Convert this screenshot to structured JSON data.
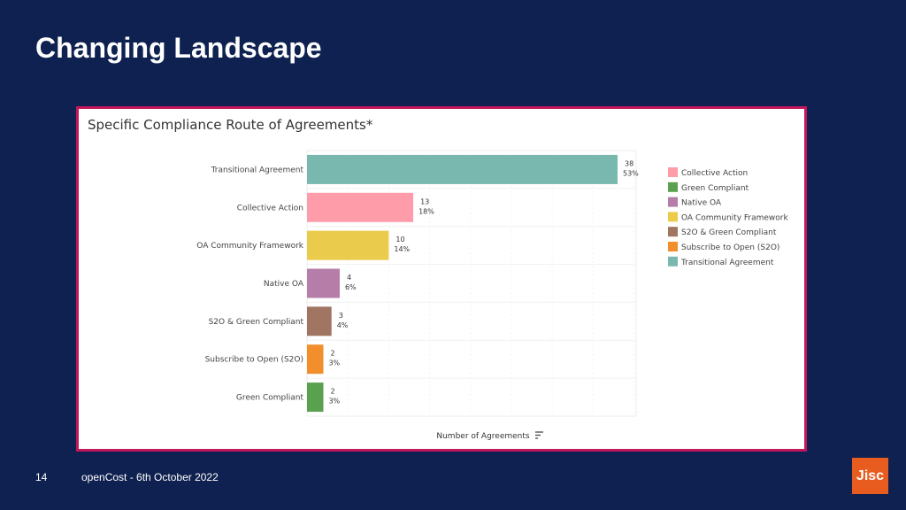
{
  "slide": {
    "title": "Changing Landscape",
    "page_number": "14",
    "footer": "openCost -  6th October 2022",
    "logo_text": "Jisc"
  },
  "chart_data": {
    "type": "bar",
    "orientation": "horizontal",
    "title": "Specific Compliance Route of Agreements*",
    "xlabel": "Number of Agreements",
    "ylabel": "",
    "grid": true,
    "legend_placement": "right",
    "categories": [
      "Transitional Agreement",
      "Collective Action",
      "OA Community Framework",
      "Native OA",
      "S2O & Green Compliant",
      "Subscribe to Open (S2O)",
      "Green Compliant"
    ],
    "values": [
      38,
      13,
      10,
      4,
      3,
      2,
      2
    ],
    "percent_labels": [
      "53%",
      "18%",
      "14%",
      "6%",
      "4%",
      "3%",
      "3%"
    ],
    "colors": [
      "#79b8ae",
      "#fe9da9",
      "#ebcb4c",
      "#b57da8",
      "#a07561",
      "#f28e2c",
      "#59a14f"
    ],
    "xlim": [
      0,
      41
    ],
    "legend": [
      {
        "label": "Collective Action",
        "color": "#fe9da9"
      },
      {
        "label": "Green Compliant",
        "color": "#59a14f"
      },
      {
        "label": "Native OA",
        "color": "#b57da8"
      },
      {
        "label": "OA Community Framework",
        "color": "#ebcb4c"
      },
      {
        "label": "S2O & Green Compliant",
        "color": "#a07561"
      },
      {
        "label": "Subscribe to Open (S2O)",
        "color": "#f28e2c"
      },
      {
        "label": "Transitional Agreement",
        "color": "#79b8ae"
      }
    ]
  }
}
